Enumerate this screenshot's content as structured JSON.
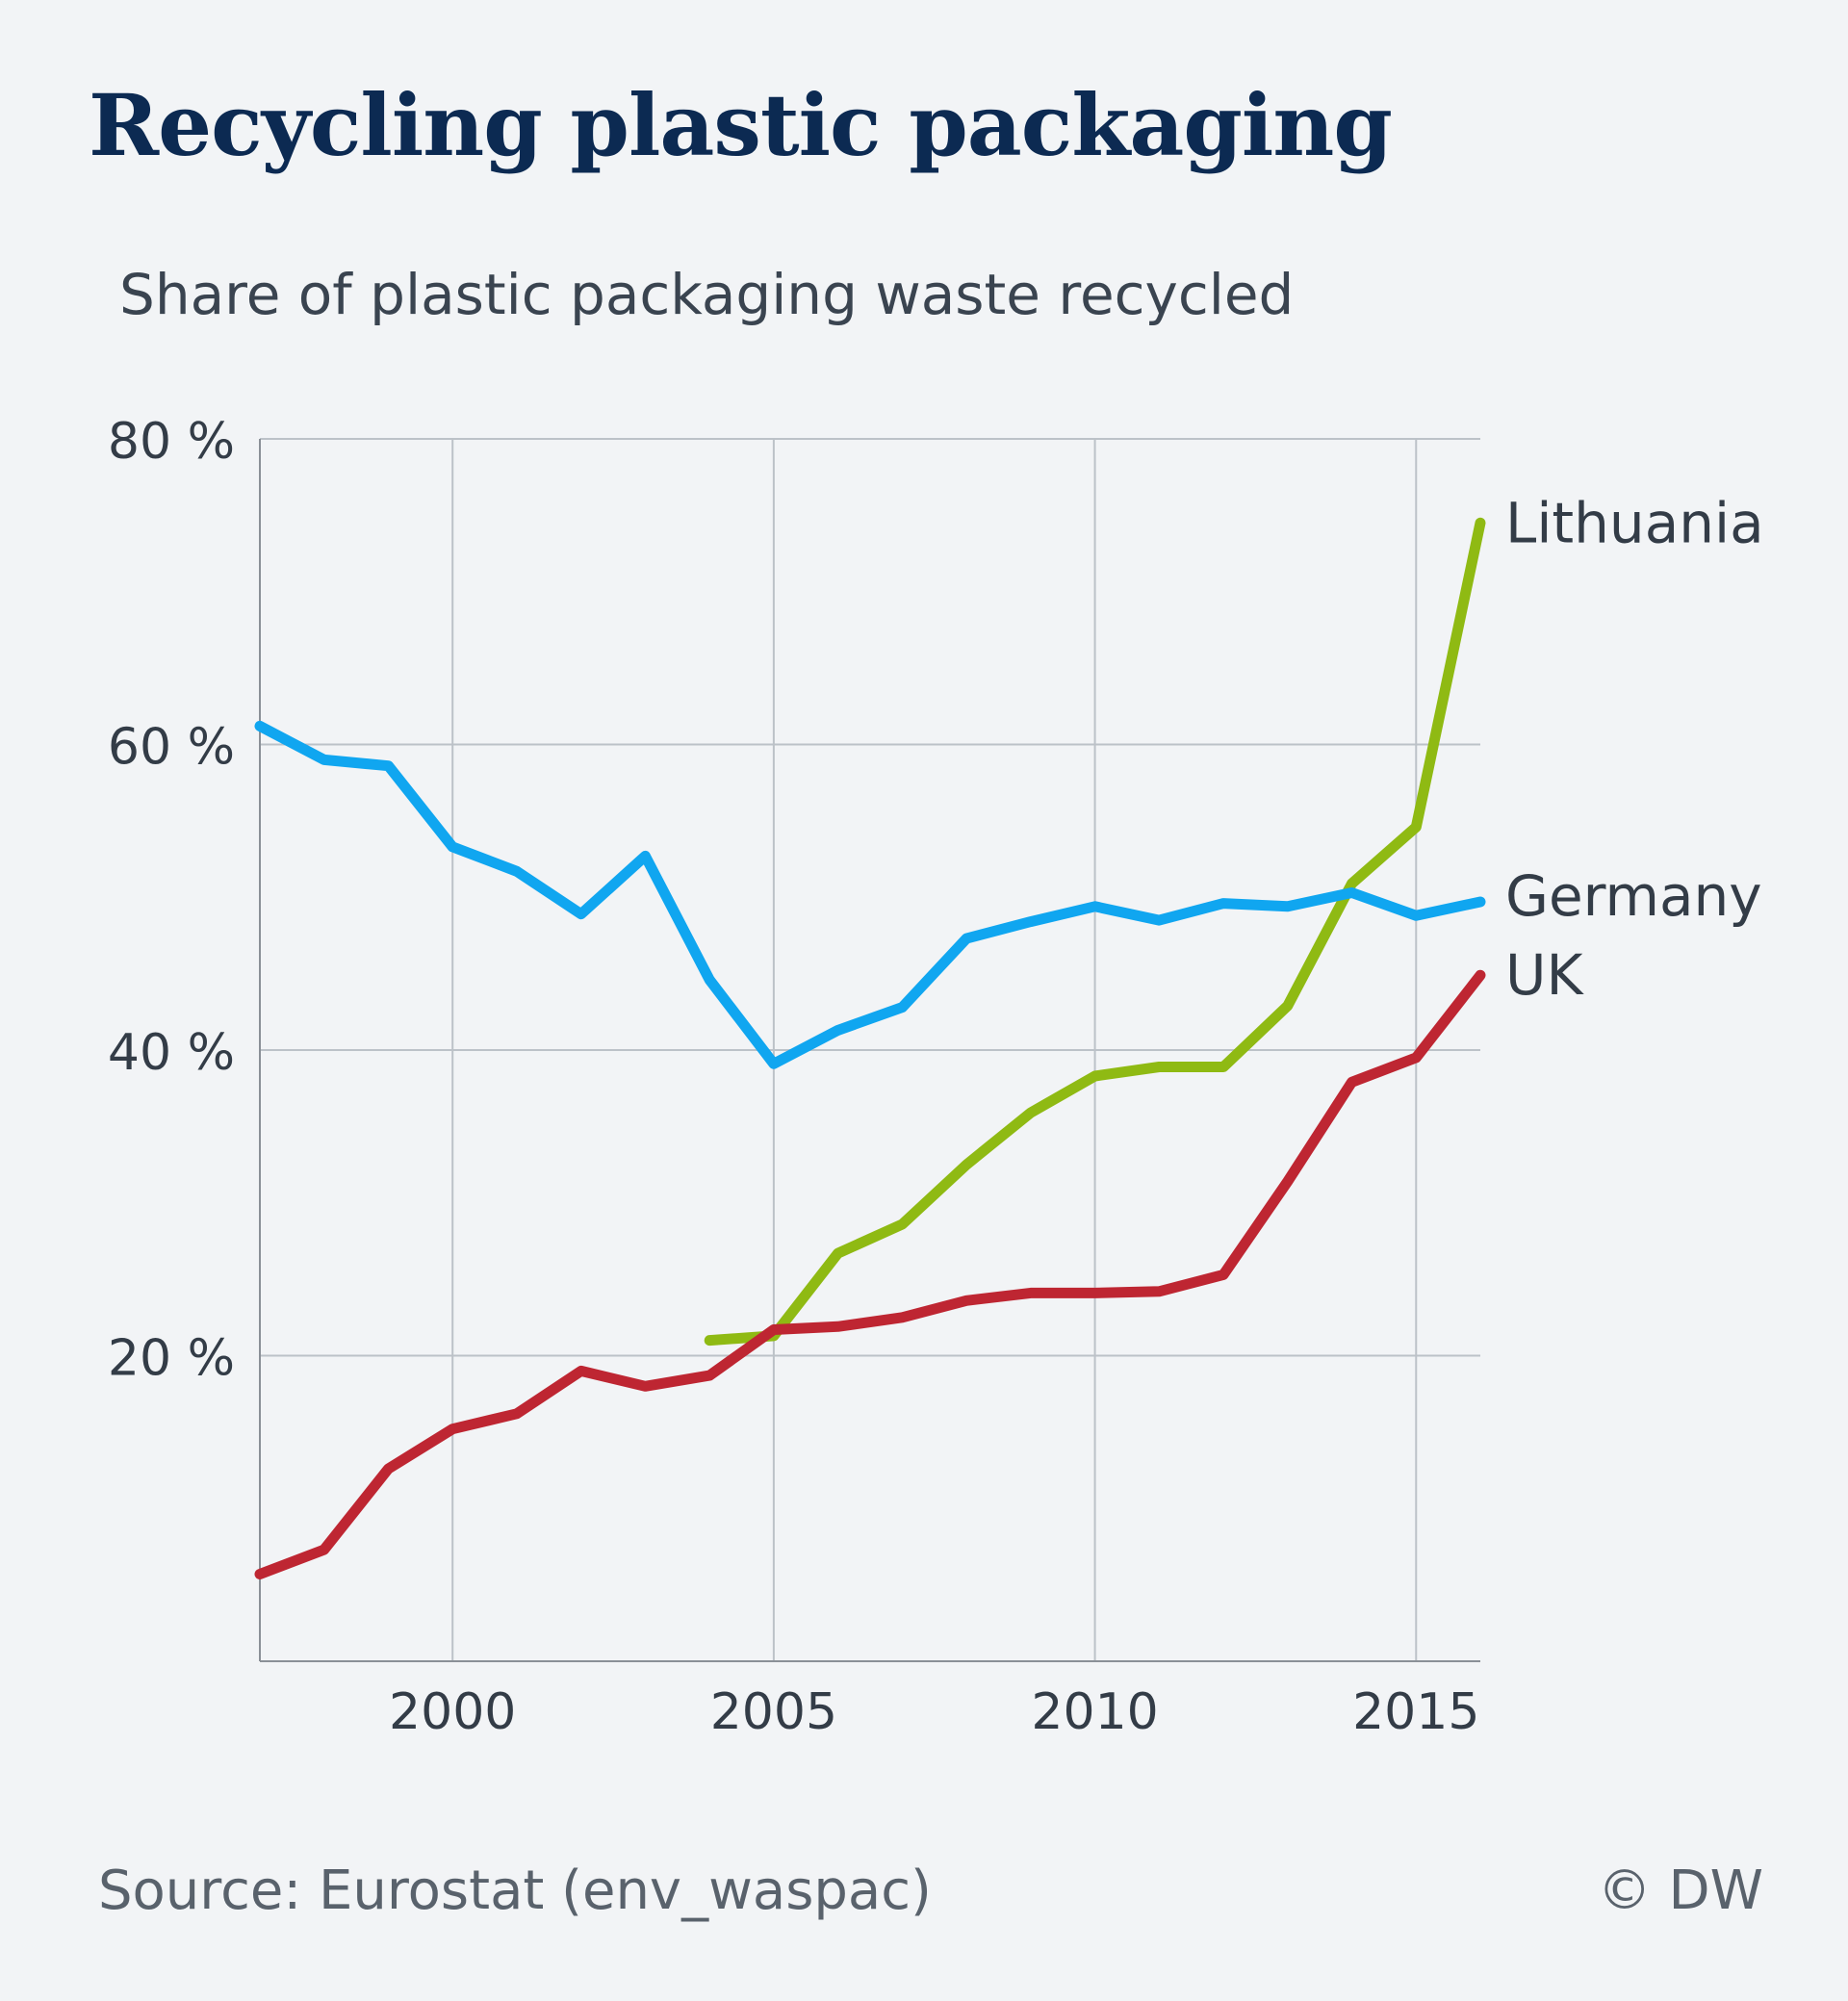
{
  "title": "Recycling plastic packaging",
  "subtitle": "Share of plastic packaging waste recycled",
  "source": "Source: Eurostat (env_waspac)",
  "credit": "© DW",
  "chart_data": {
    "type": "line",
    "ylim": [
      0,
      80
    ],
    "xlim": [
      1997,
      2016
    ],
    "y_ticks": [
      20,
      40,
      60,
      80
    ],
    "y_tick_labels": [
      "20 %",
      "40 %",
      "60 %",
      "80 %"
    ],
    "x_ticks": [
      2000,
      2005,
      2010,
      2015
    ],
    "x_tick_labels": [
      "2000",
      "2005",
      "2010",
      "2015"
    ],
    "grid": true,
    "legend": "labels at line ends (right)",
    "series": [
      {
        "name": "Lithuania",
        "color": "#8fba13",
        "x": [
          2004,
          2005,
          2006,
          2007,
          2008,
          2009,
          2010,
          2011,
          2012,
          2013,
          2014,
          2015,
          2016
        ],
        "values": [
          21.0,
          21.3,
          26.7,
          28.6,
          32.5,
          35.9,
          38.3,
          38.9,
          38.9,
          42.9,
          50.9,
          54.6,
          74.5
        ]
      },
      {
        "name": "Germany",
        "color": "#10a6f0",
        "x": [
          1997,
          1998,
          1999,
          2000,
          2001,
          2002,
          2003,
          2004,
          2005,
          2006,
          2007,
          2008,
          2009,
          2010,
          2011,
          2012,
          2013,
          2014,
          2015,
          2016
        ],
        "values": [
          61.2,
          59.0,
          58.6,
          53.3,
          51.7,
          48.9,
          52.7,
          44.6,
          39.1,
          41.3,
          42.8,
          47.3,
          48.4,
          49.4,
          48.5,
          49.6,
          49.4,
          50.3,
          48.8,
          49.7
        ]
      },
      {
        "name": "UK",
        "color": "#be2632",
        "x": [
          1997,
          1998,
          1999,
          2000,
          2001,
          2002,
          2003,
          2004,
          2005,
          2006,
          2007,
          2008,
          2009,
          2010,
          2011,
          2012,
          2013,
          2014,
          2015,
          2016
        ],
        "values": [
          5.7,
          7.3,
          12.6,
          15.2,
          16.2,
          19.0,
          18.0,
          18.7,
          21.7,
          21.9,
          22.5,
          23.6,
          24.1,
          24.1,
          24.2,
          25.3,
          31.4,
          37.9,
          39.5,
          44.9
        ]
      }
    ]
  }
}
